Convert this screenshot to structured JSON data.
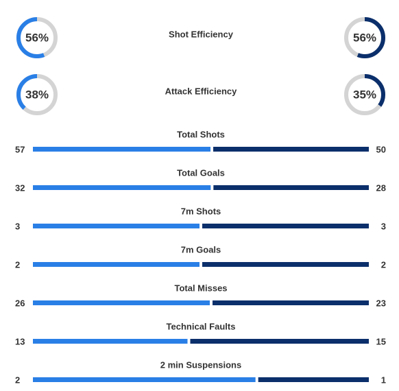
{
  "home_color": "#2a7fe6",
  "away_color": "#0b2f6b",
  "track_color": "#d4d4d4",
  "efficiency": [
    {
      "label": "Shot Efficiency",
      "home": 56,
      "home_label": "56%",
      "away": 56,
      "away_label": "56%"
    },
    {
      "label": "Attack Efficiency",
      "home": 38,
      "home_label": "38%",
      "away": 35,
      "away_label": "35%"
    }
  ],
  "stats": [
    {
      "label": "Total Shots",
      "home": 57,
      "away": 50
    },
    {
      "label": "Total Goals",
      "home": 32,
      "away": 28
    },
    {
      "label": "7m Shots",
      "home": 3,
      "away": 3
    },
    {
      "label": "7m Goals",
      "home": 2,
      "away": 2
    },
    {
      "label": "Total Misses",
      "home": 26,
      "away": 23
    },
    {
      "label": "Technical Faults",
      "home": 13,
      "away": 15
    },
    {
      "label": "2 min Suspensions",
      "home": 2,
      "away": 1
    }
  ]
}
